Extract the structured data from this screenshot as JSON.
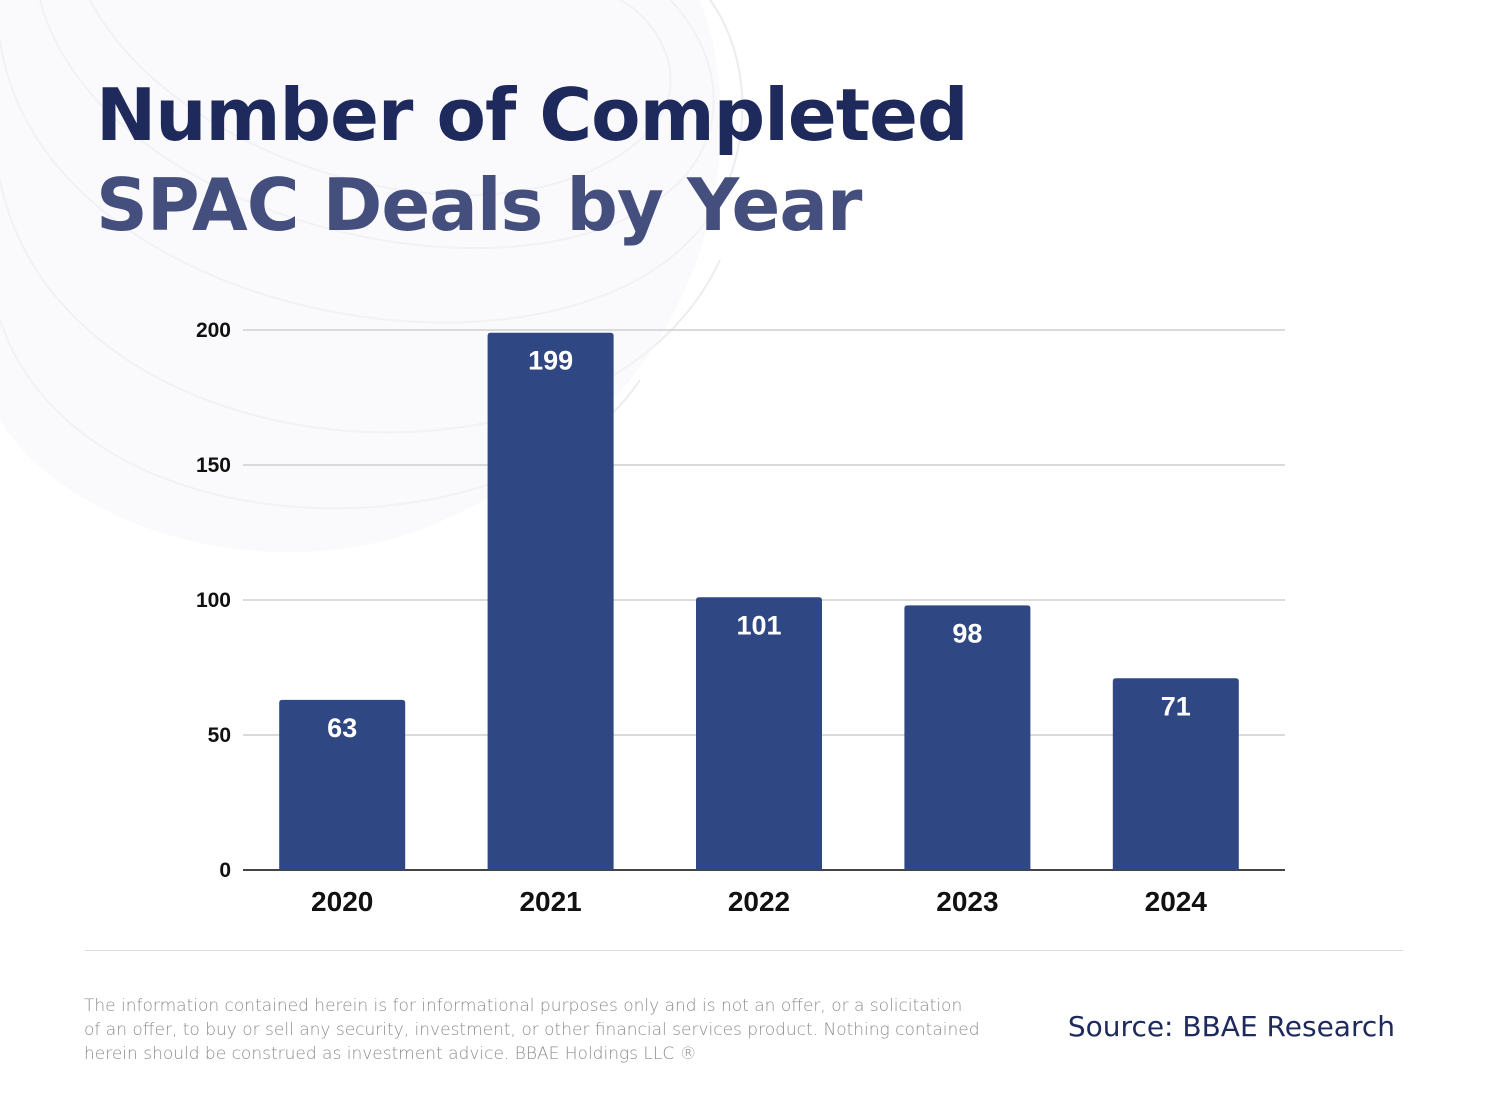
{
  "title": {
    "line1": "Number of Completed",
    "line2": "SPAC Deals by Year"
  },
  "colors": {
    "bar": "#2f4782",
    "title_primary": "#1f2a5c",
    "title_secondary": "#454f7e",
    "gridline": "#cfcfcf"
  },
  "chart_data": {
    "type": "bar",
    "categories": [
      "2020",
      "2021",
      "2022",
      "2023",
      "2024"
    ],
    "values": [
      63,
      199,
      101,
      98,
      71
    ],
    "ylim": [
      0,
      200
    ],
    "yticks": [
      0,
      50,
      100,
      150,
      200
    ],
    "xlabel": "",
    "ylabel": "",
    "grid": true,
    "data_labels": true
  },
  "footer": {
    "disclaimer": "The information contained herein is for informational purposes only and is not an offer, or a solicitation of an offer, to buy or sell any security, investment, or other financial services product. Nothing contained herein should be construed as investment advice. BBAE Holdings LLC ®",
    "source": "Source: BBAE Research"
  }
}
